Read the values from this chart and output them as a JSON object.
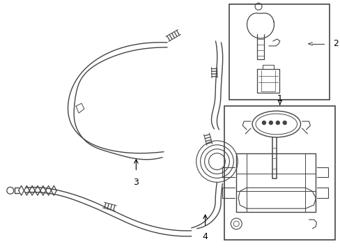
{
  "bg_color": "#ffffff",
  "line_color": "#444444",
  "label_color": "#000000",
  "figsize": [
    4.89,
    3.6
  ],
  "dpi": 100
}
